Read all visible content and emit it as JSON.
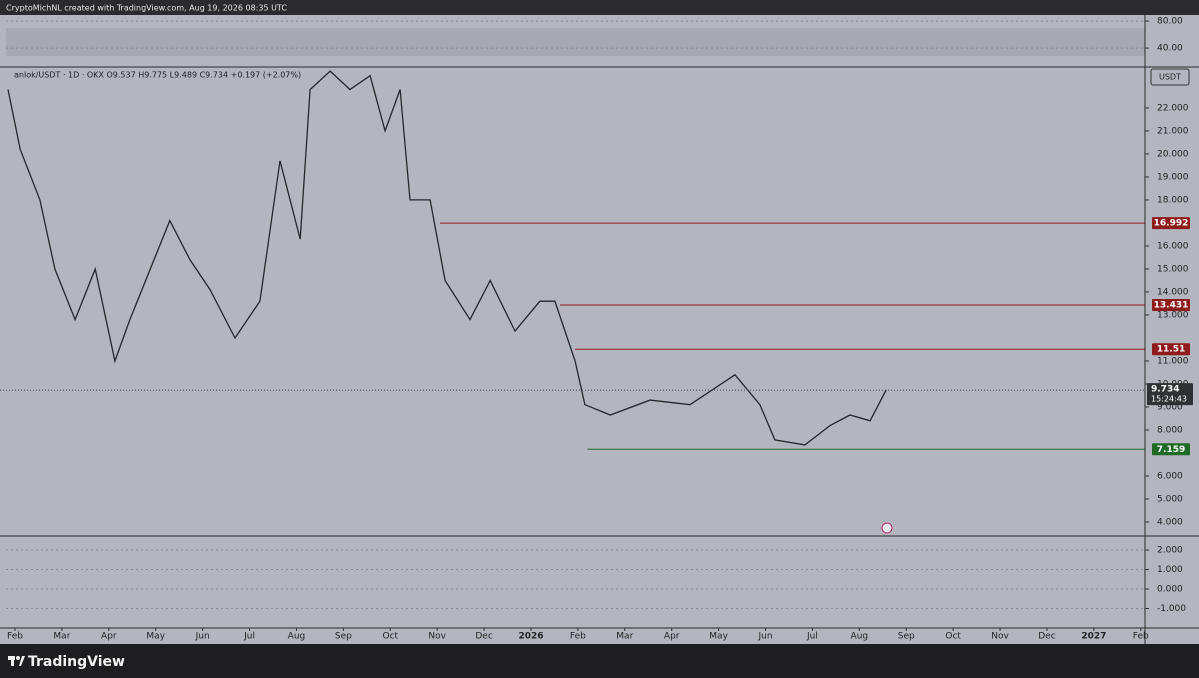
{
  "header": {
    "text": "CryptoMichNL created with TradingView.com, Aug 19, 2026 08:35 UTC"
  },
  "footer": {
    "brand": "TradingView"
  },
  "rsi": {
    "ylim": [
      12,
      89
    ],
    "yticks": [
      {
        "value": 80,
        "label": "80.00"
      },
      {
        "value": 40,
        "label": "40.00"
      }
    ]
  },
  "macd": {
    "ylim": [
      -2,
      2.72
    ],
    "yticks": [
      {
        "value": 2,
        "label": "2.000"
      },
      {
        "value": 1,
        "label": "1.000"
      },
      {
        "value": 0,
        "label": "0.000"
      },
      {
        "value": -1,
        "label": "-1.000"
      }
    ]
  },
  "chart_data": {
    "type": "line",
    "legend": "anlok/USDT · 1D · OKX  O9.537 H9.775 L9.489 C9.734 +0.197 (+2.07%)",
    "currency": "USDT",
    "countdown": "15:24:43",
    "color": "#26272b",
    "x": [
      -0.15,
      0.11,
      0.53,
      0.85,
      1.28,
      1.71,
      2.13,
      2.45,
      3.3,
      3.73,
      4.16,
      4.69,
      5.22,
      5.65,
      6.08,
      6.29,
      6.72,
      7.14,
      7.57,
      7.89,
      8.21,
      8.42,
      8.85,
      9.17,
      9.7,
      10.13,
      10.66,
      11.19,
      11.51,
      11.94,
      12.15,
      12.69,
      13.54,
      14.39,
      15.35,
      15.88,
      16.2,
      16.84,
      17.38,
      17.8,
      18.23,
      18.57
    ],
    "values": [
      22.8,
      20.2,
      18,
      15,
      12.8,
      15,
      11,
      12.8,
      17.1,
      15.4,
      14.1,
      12,
      13.6,
      19.7,
      16.3,
      22.8,
      23.6,
      22.8,
      23.4,
      21,
      22.8,
      18,
      18,
      14.5,
      12.8,
      14.5,
      12.3,
      13.6,
      13.6,
      11,
      9.1,
      8.65,
      9.3,
      9.1,
      10.4,
      9.1,
      7.57,
      7.35,
      8.2,
      8.65,
      8.4,
      9.734
    ],
    "levels": [
      {
        "value": 16.992,
        "start": 9.06,
        "color": "#8e1c1c"
      },
      {
        "value": 13.431,
        "start": 11.62,
        "color": "#8e1c1c"
      },
      {
        "value": 11.51,
        "start": 11.94,
        "color": "#8e1c1c"
      },
      {
        "value": 7.159,
        "start": 12.2,
        "color": "#1f6b26"
      }
    ],
    "xlim": [
      -0.32,
      24.09
    ],
    "ylim": [
      3.39,
      23.78
    ],
    "xticks": [
      {
        "value": 0,
        "label": "Feb"
      },
      {
        "value": 1,
        "label": "Mar"
      },
      {
        "value": 2,
        "label": "Apr"
      },
      {
        "value": 3,
        "label": "May"
      },
      {
        "value": 4,
        "label": "Jun"
      },
      {
        "value": 5,
        "label": "Jul"
      },
      {
        "value": 6,
        "label": "Aug"
      },
      {
        "value": 7,
        "label": "Sep"
      },
      {
        "value": 8,
        "label": "Oct"
      },
      {
        "value": 9,
        "label": "Nov"
      },
      {
        "value": 10,
        "label": "Dec"
      },
      {
        "value": 11,
        "label": "2026"
      },
      {
        "value": 12,
        "label": "Feb"
      },
      {
        "value": 13,
        "label": "Mar"
      },
      {
        "value": 14,
        "label": "Apr"
      },
      {
        "value": 15,
        "label": "May"
      },
      {
        "value": 16,
        "label": "Jun"
      },
      {
        "value": 17,
        "label": "Jul"
      },
      {
        "value": 18,
        "label": "Aug"
      },
      {
        "value": 19,
        "label": "Sep"
      },
      {
        "value": 20,
        "label": "Oct"
      },
      {
        "value": 21,
        "label": "Nov"
      },
      {
        "value": 22,
        "label": "Dec"
      },
      {
        "value": 23,
        "label": "2027"
      },
      {
        "value": 24,
        "label": "Feb"
      }
    ],
    "yticks": [
      {
        "value": 4,
        "label": "4.000"
      },
      {
        "value": 5,
        "label": "5.000"
      },
      {
        "value": 6,
        "label": "6.000"
      },
      {
        "value": 8,
        "label": "8.000"
      },
      {
        "value": 9,
        "label": "9.000"
      },
      {
        "value": 10,
        "label": "10.000"
      },
      {
        "value": 11,
        "label": "11.000"
      },
      {
        "value": 13,
        "label": "13.000"
      },
      {
        "value": 14,
        "label": "14.000"
      },
      {
        "value": 15,
        "label": "15.000"
      },
      {
        "value": 16,
        "label": "16.000"
      },
      {
        "value": 18,
        "label": "18.000"
      },
      {
        "value": 19,
        "label": "19.000"
      },
      {
        "value": 20,
        "label": "20.000"
      },
      {
        "value": 21,
        "label": "21.000"
      },
      {
        "value": 22,
        "label": "22.000"
      }
    ]
  }
}
